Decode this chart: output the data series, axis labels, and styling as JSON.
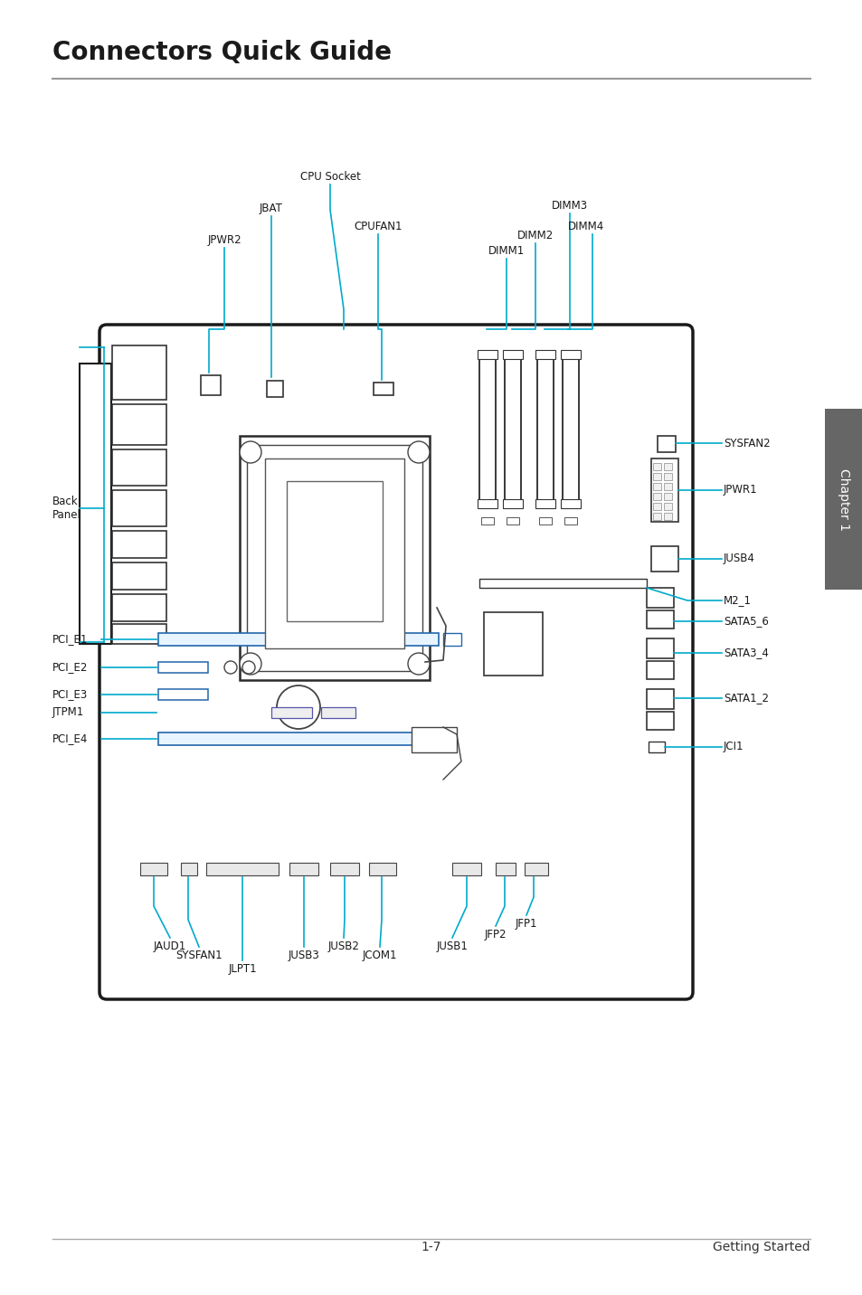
{
  "title": "Connectors Quick Guide",
  "title_fontsize": 20,
  "footer_left": "1-7",
  "footer_right": "Getting Started",
  "footer_fontsize": 10,
  "bg_color": "#ffffff",
  "board_color": "#1a1a1a",
  "connector_color": "#00aacc",
  "label_fontsize": 8.5,
  "chapter_text": "Chapter 1",
  "sidebar_color": "#666666"
}
